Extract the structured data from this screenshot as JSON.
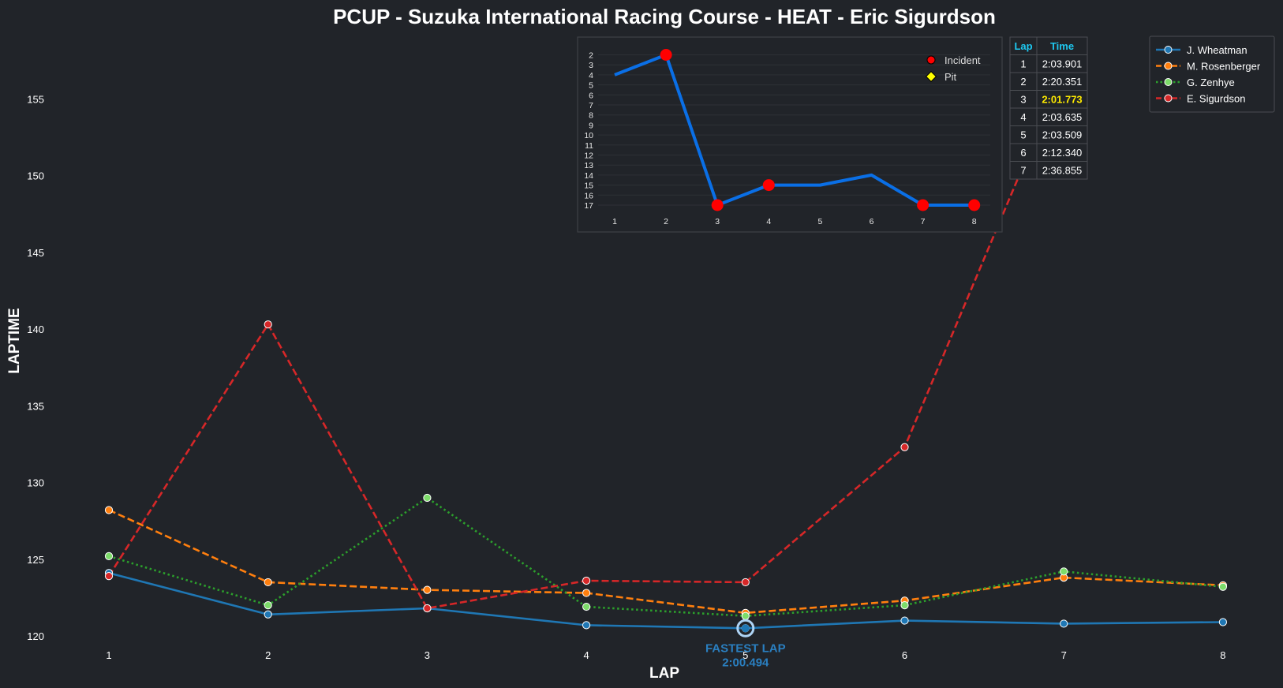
{
  "chart_data": [
    {
      "type": "line",
      "title": "PCUP - Suzuka International Racing Course - HEAT - Eric Sigurdson",
      "xlabel": "LAP",
      "ylabel": "LAPTIME",
      "x": [
        1,
        2,
        3,
        4,
        5,
        6,
        7,
        8
      ],
      "xticks": [
        "1",
        "2",
        "3",
        "4",
        "5",
        "6",
        "7",
        "8"
      ],
      "yticks": [
        "120",
        "125",
        "130",
        "135",
        "140",
        "145",
        "150",
        "155"
      ],
      "xlim": [
        0.3,
        8.3
      ],
      "ylim": [
        118.9,
        159.5
      ],
      "grid": false,
      "legend": "top-right",
      "series": [
        {
          "name": "J. Wheatman",
          "color": "#1f77b4",
          "style": "solid",
          "values": [
            124.1,
            121.4,
            121.8,
            120.7,
            120.5,
            121.0,
            120.8,
            120.9
          ]
        },
        {
          "name": "M. Rosenberger",
          "color": "#ff7f0e",
          "style": "dashed",
          "values": [
            128.2,
            123.5,
            123.0,
            122.8,
            121.5,
            122.3,
            123.8,
            123.3
          ]
        },
        {
          "name": "G. Zenhye",
          "color": "#2ca02c",
          "style": "dotted",
          "values": [
            125.2,
            122.0,
            129.0,
            121.9,
            121.3,
            122.0,
            124.2,
            123.2
          ]
        },
        {
          "name": "E. Sigurdson",
          "color": "#d62728",
          "style": "dashed",
          "values": [
            123.9,
            140.3,
            121.8,
            123.6,
            123.5,
            132.3,
            156.9,
            null
          ]
        }
      ],
      "annotation": {
        "line1": "FASTEST LAP",
        "line2": "2:00.494",
        "x": 5,
        "y": 120.5
      }
    },
    {
      "type": "line",
      "title": "",
      "x": [
        1,
        2,
        3,
        4,
        5,
        6,
        7,
        8
      ],
      "xticks": [
        "1",
        "2",
        "3",
        "4",
        "5",
        "6",
        "7",
        "8"
      ],
      "yticks": [
        "2",
        "3",
        "4",
        "5",
        "6",
        "7",
        "8",
        "9",
        "10",
        "11",
        "12",
        "13",
        "14",
        "15",
        "16",
        "17"
      ],
      "ylim_inverted": [
        17.3,
        1.4
      ],
      "series": [
        {
          "name": "Position",
          "color": "#0a6fe6",
          "values": [
            4,
            2,
            17,
            15,
            15,
            14,
            17,
            17
          ]
        }
      ],
      "incidents": [
        2,
        3,
        4,
        7,
        8
      ],
      "legend": [
        "Incident",
        "Pit"
      ]
    }
  ],
  "lap_table": {
    "headers": [
      "Lap",
      "Time"
    ],
    "rows": [
      [
        "1",
        "2:03.901"
      ],
      [
        "2",
        "2:20.351"
      ],
      [
        "3",
        "2:01.773"
      ],
      [
        "4",
        "2:03.635"
      ],
      [
        "5",
        "2:03.509"
      ],
      [
        "6",
        "2:12.340"
      ],
      [
        "7",
        "2:36.855"
      ]
    ],
    "highlight_row": 2
  },
  "colors": {
    "background": "#212429",
    "text": "#ffffff",
    "incident": "#ff0000",
    "pit": "#ffff00",
    "table_header": "#1ec8f0",
    "fastest": "#2a7fc0"
  }
}
